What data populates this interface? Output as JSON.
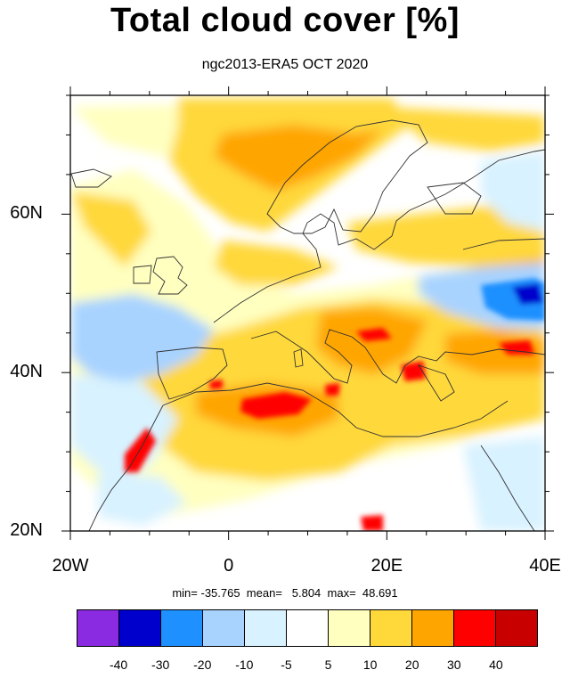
{
  "title": "Total cloud cover [%]",
  "subtitle": "ngc2013-ERA5 OCT 2020",
  "map": {
    "lon_range": [
      -20,
      40
    ],
    "lat_range": [
      20,
      75
    ],
    "x_ticks": [
      {
        "value": -20,
        "label": "20W"
      },
      {
        "value": 0,
        "label": "0"
      },
      {
        "value": 20,
        "label": "20E"
      },
      {
        "value": 40,
        "label": "40E"
      }
    ],
    "y_ticks": [
      {
        "value": 20,
        "label": "20N"
      },
      {
        "value": 40,
        "label": "40N"
      },
      {
        "value": 60,
        "label": "60N"
      }
    ],
    "regions": [
      {
        "name": "north-atlantic-positive",
        "level": 20,
        "color": "#ffd83a"
      },
      {
        "name": "scandinavia-positive",
        "level": 30,
        "color": "#ffa500"
      },
      {
        "name": "mediterranean-positive",
        "level": 30,
        "color": "#ffa500"
      },
      {
        "name": "north-africa-max",
        "level": 40,
        "color": "#ff0000"
      },
      {
        "name": "russia-negative",
        "level": -30,
        "color": "#1e90ff"
      },
      {
        "name": "atlantic-azores-negative",
        "level": -10,
        "color": "#a8d3ff"
      }
    ]
  },
  "stats": {
    "text": "min= -35.765  mean=   5.804  max=  48.691"
  },
  "colorbar": {
    "colors": [
      "#8a2be2",
      "#0000cd",
      "#1e90ff",
      "#a8d3ff",
      "#d8f2ff",
      "#ffffff",
      "#ffffc0",
      "#ffd83a",
      "#ffa500",
      "#ff0000",
      "#c80000"
    ],
    "labels": [
      "-40",
      "-30",
      "-20",
      "-10",
      "-5",
      "5",
      "10",
      "20",
      "30",
      "40"
    ]
  }
}
